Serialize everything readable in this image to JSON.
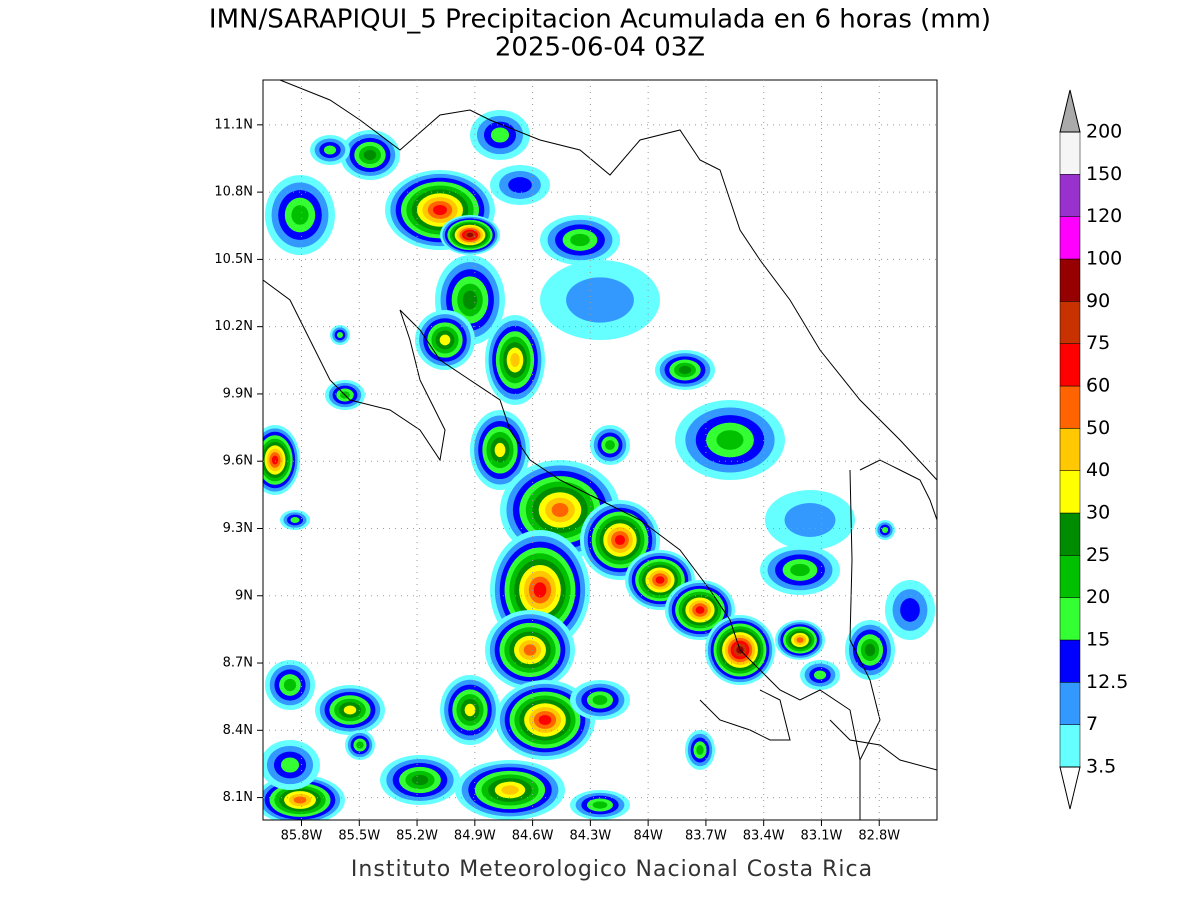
{
  "map": {
    "title": "IMN/SARAPIQUI_5 Precipitacion Acumulada en 6 horas (mm)",
    "subtitle": "2025-06-04 03Z",
    "footer": "Instituto Meteorologico Nacional Costa Rica",
    "lat_range": [
      8.0,
      11.3
    ],
    "lon_range": [
      -86.0,
      -82.5
    ],
    "lat_ticks": [
      {
        "value": 11.1,
        "label": "11.1N"
      },
      {
        "value": 10.8,
        "label": "10.8N"
      },
      {
        "value": 10.5,
        "label": "10.5N"
      },
      {
        "value": 10.2,
        "label": "10.2N"
      },
      {
        "value": 9.9,
        "label": "9.9N"
      },
      {
        "value": 9.6,
        "label": "9.6N"
      },
      {
        "value": 9.3,
        "label": "9.3N"
      },
      {
        "value": 9,
        "label": "9N"
      },
      {
        "value": 8.7,
        "label": "8.7N"
      },
      {
        "value": 8.4,
        "label": "8.4N"
      },
      {
        "value": 8.1,
        "label": "8.1N"
      }
    ],
    "lon_ticks": [
      {
        "value": -85.8,
        "label": "85.8W"
      },
      {
        "value": -85.5,
        "label": "85.5W"
      },
      {
        "value": -85.2,
        "label": "85.2W"
      },
      {
        "value": -84.9,
        "label": "84.9W"
      },
      {
        "value": -84.6,
        "label": "84.6W"
      },
      {
        "value": -84.3,
        "label": "84.3W"
      },
      {
        "value": -84,
        "label": "84W"
      },
      {
        "value": -83.7,
        "label": "83.7W"
      },
      {
        "value": -83.4,
        "label": "83.4W"
      },
      {
        "value": -83.1,
        "label": "83.1W"
      },
      {
        "value": -82.8,
        "label": "82.8W"
      }
    ],
    "grid": true,
    "legend": {
      "levels": [
        3.5,
        7,
        12.5,
        15,
        20,
        25,
        30,
        40,
        50,
        60,
        75,
        90,
        100,
        120,
        150,
        200
      ],
      "colors": [
        "#66ffff",
        "#3399ff",
        "#0000ff",
        "#33ff33",
        "#00c000",
        "#008c00",
        "#ffff00",
        "#ffc800",
        "#ff6400",
        "#ff0000",
        "#c83200",
        "#960000",
        "#ff00ff",
        "#9932cc",
        "#f5f5f5"
      ],
      "under_color": "#ffffff",
      "over_color": "#aaaaaa"
    }
  }
}
